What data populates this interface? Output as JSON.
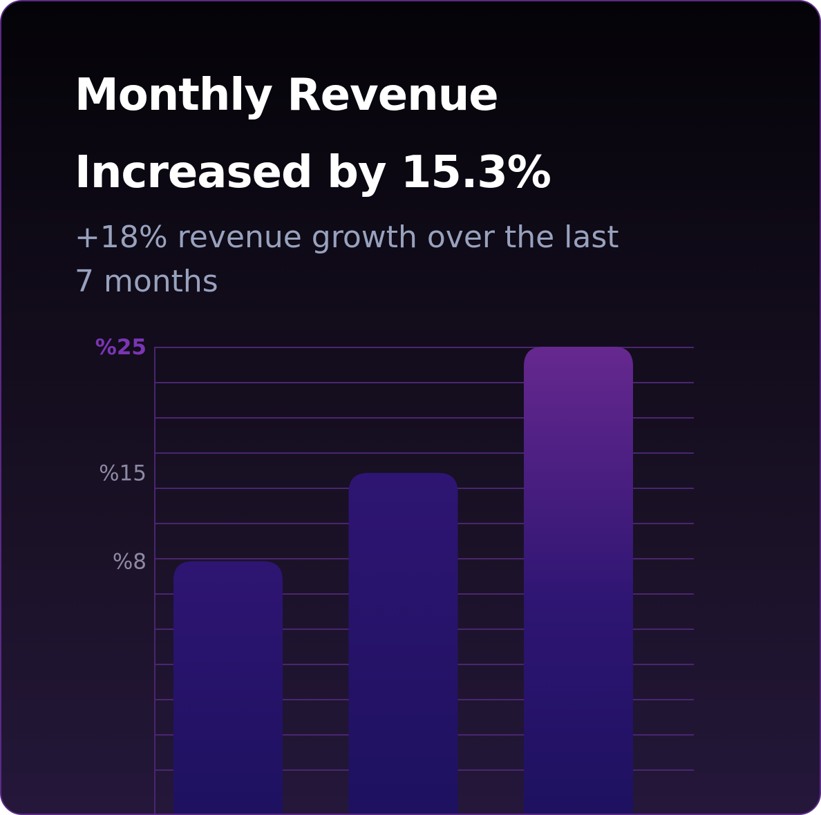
{
  "headline": {
    "line1": "Monthly Revenue",
    "line2": "Increased by 15.3%"
  },
  "description": {
    "line1": "+18% revenue growth over the last",
    "line2": "7 months"
  },
  "colors": {
    "grid": "#4a2670",
    "tick_default": "#8e8aa3",
    "tick_highlight": "#7a35b3",
    "bar_base": "#1e1160",
    "bar_mid": "#2e1573",
    "bar_top_highlight": "#66288f"
  },
  "chart_data": {
    "type": "bar",
    "title": "",
    "xlabel": "",
    "ylabel": "",
    "categories": [
      "",
      "",
      ""
    ],
    "values": [
      8,
      15,
      25
    ],
    "ylim": [
      -12,
      25
    ],
    "yticks": [
      {
        "value": 25,
        "label": "%25",
        "highlight": true
      },
      {
        "value": 15,
        "label": "%15",
        "highlight": false
      },
      {
        "value": 8,
        "label": "%8",
        "highlight": false
      }
    ],
    "highlight_index": 2,
    "grid": true
  }
}
